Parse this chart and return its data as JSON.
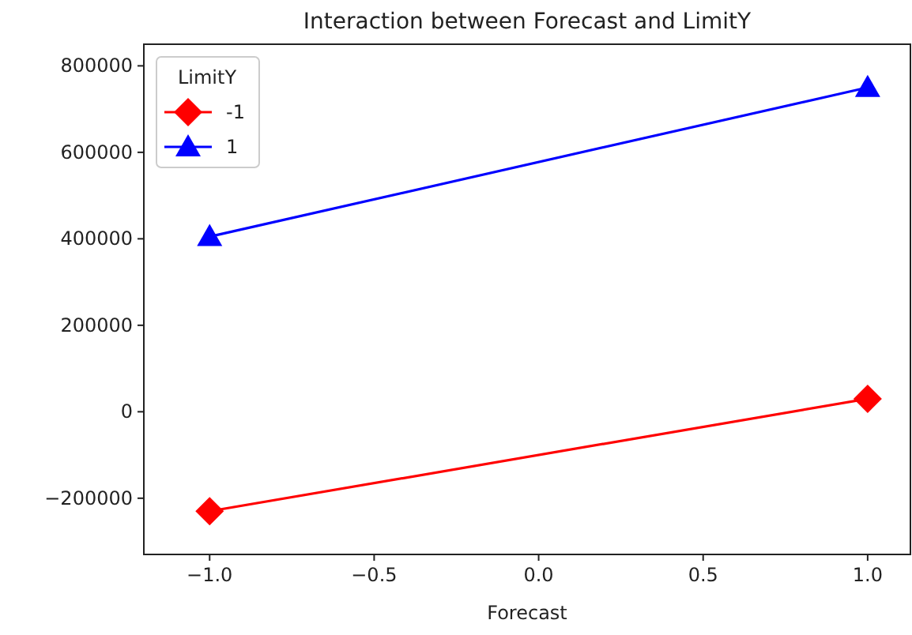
{
  "chart_data": {
    "type": "line",
    "title": "Interaction between Forecast and LimitY",
    "xlabel": "Forecast",
    "legend_title": "LimitY",
    "legend": "top left",
    "grid": false,
    "x": [
      -1,
      1
    ],
    "xlim": [
      -1.2,
      1.13
    ],
    "xticks": [
      {
        "value": -1,
        "label": "−1.0"
      },
      {
        "value": -0.5,
        "label": "−0.5"
      },
      {
        "value": 0,
        "label": "0.0"
      },
      {
        "value": 0.5,
        "label": "0.5"
      },
      {
        "value": 1,
        "label": "1.0"
      }
    ],
    "ylim": [
      -330000,
      850000
    ],
    "yticks": [
      {
        "value": -200000,
        "label": "−200000"
      },
      0,
      200000,
      400000,
      600000,
      800000
    ],
    "series": [
      {
        "name": "-1",
        "color": "#ff0000",
        "marker": "diamond",
        "values": [
          -230000,
          30000
        ]
      },
      {
        "name": "1",
        "color": "#0000ff",
        "marker": "triangle",
        "values": [
          405000,
          750000
        ]
      }
    ]
  }
}
